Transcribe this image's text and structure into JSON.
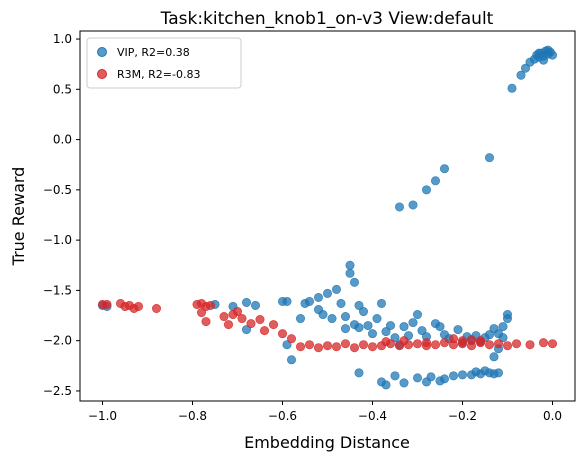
{
  "chart_data": {
    "type": "scatter",
    "title": "Task:kitchen_knob1_on-v3 View:default",
    "xlabel": "Embedding Distance",
    "ylabel": "True Reward",
    "xlim": [
      -1.05,
      0.05
    ],
    "ylim": [
      -2.6,
      1.08
    ],
    "xticks": [
      -1.0,
      -0.8,
      -0.6,
      -0.4,
      -0.2,
      0.0
    ],
    "yticks": [
      1.0,
      0.5,
      0.0,
      -0.5,
      -1.0,
      -1.5,
      -2.0,
      -2.5
    ],
    "xtick_labels": [
      "−1.0",
      "−0.8",
      "−0.6",
      "−0.4",
      "−0.2",
      "0.0"
    ],
    "ytick_labels": [
      "1.0",
      "0.5",
      "0.0",
      "−0.5",
      "−1.0",
      "−1.5",
      "−2.0",
      "−2.5"
    ],
    "grid": false,
    "legend_position": "top-left",
    "series": [
      {
        "name": "VIP, R2=0.38",
        "color": "#1f77b4",
        "points": [
          [
            -1.0,
            -1.65
          ],
          [
            -0.99,
            -1.66
          ],
          [
            -0.75,
            -1.64
          ],
          [
            -0.71,
            -1.66
          ],
          [
            -0.68,
            -1.62
          ],
          [
            -0.66,
            -1.65
          ],
          [
            -0.6,
            -1.61
          ],
          [
            -0.59,
            -1.61
          ],
          [
            -0.68,
            -1.89
          ],
          [
            -0.59,
            -2.04
          ],
          [
            -0.56,
            -1.78
          ],
          [
            -0.55,
            -1.63
          ],
          [
            -0.54,
            -1.61
          ],
          [
            -0.52,
            -1.57
          ],
          [
            -0.52,
            -1.69
          ],
          [
            -0.51,
            -1.74
          ],
          [
            -0.5,
            -1.53
          ],
          [
            -0.49,
            -1.78
          ],
          [
            -0.48,
            -1.49
          ],
          [
            -0.47,
            -1.63
          ],
          [
            -0.46,
            -1.76
          ],
          [
            -0.46,
            -1.88
          ],
          [
            -0.45,
            -1.33
          ],
          [
            -0.45,
            -1.25
          ],
          [
            -0.44,
            -1.42
          ],
          [
            -0.44,
            -1.84
          ],
          [
            -0.43,
            -1.65
          ],
          [
            -0.43,
            -1.87
          ],
          [
            -0.42,
            -1.71
          ],
          [
            -0.41,
            -1.85
          ],
          [
            -0.4,
            -1.93
          ],
          [
            -0.39,
            -1.78
          ],
          [
            -0.38,
            -1.63
          ],
          [
            -0.37,
            -1.91
          ],
          [
            -0.36,
            -1.85
          ],
          [
            -0.35,
            -1.97
          ],
          [
            -0.34,
            -2.04
          ],
          [
            -0.33,
            -1.86
          ],
          [
            -0.32,
            -1.95
          ],
          [
            -0.31,
            -1.82
          ],
          [
            -0.3,
            -1.74
          ],
          [
            -0.29,
            -1.9
          ],
          [
            -0.28,
            -1.96
          ],
          [
            -0.26,
            -1.83
          ],
          [
            -0.25,
            -1.86
          ],
          [
            -0.24,
            -1.94
          ],
          [
            -0.23,
            -1.98
          ],
          [
            -0.21,
            -1.89
          ],
          [
            -0.2,
            -2.02
          ],
          [
            -0.19,
            -1.96
          ],
          [
            -0.18,
            -2.0
          ],
          [
            -0.17,
            -1.95
          ],
          [
            -0.16,
            -2.01
          ],
          [
            -0.15,
            -1.97
          ],
          [
            -0.14,
            -1.94
          ],
          [
            -0.13,
            -1.88
          ],
          [
            -0.12,
            -1.93
          ],
          [
            -0.11,
            -1.97
          ],
          [
            -0.11,
            -1.86
          ],
          [
            -0.1,
            -1.78
          ],
          [
            -0.1,
            -1.74
          ],
          [
            -0.12,
            -2.08
          ],
          [
            -0.13,
            -2.16
          ],
          [
            -0.58,
            -2.19
          ],
          [
            -0.43,
            -2.32
          ],
          [
            -0.38,
            -2.41
          ],
          [
            -0.37,
            -2.44
          ],
          [
            -0.35,
            -2.35
          ],
          [
            -0.33,
            -2.42
          ],
          [
            -0.3,
            -2.37
          ],
          [
            -0.28,
            -2.41
          ],
          [
            -0.27,
            -2.36
          ],
          [
            -0.25,
            -2.4
          ],
          [
            -0.24,
            -2.38
          ],
          [
            -0.22,
            -2.35
          ],
          [
            -0.2,
            -2.34
          ],
          [
            -0.18,
            -2.34
          ],
          [
            -0.17,
            -2.31
          ],
          [
            -0.16,
            -2.33
          ],
          [
            -0.15,
            -2.3
          ],
          [
            -0.14,
            -2.32
          ],
          [
            -0.13,
            -2.33
          ],
          [
            -0.12,
            -2.32
          ],
          [
            -0.34,
            -0.67
          ],
          [
            -0.31,
            -0.65
          ],
          [
            -0.28,
            -0.5
          ],
          [
            -0.26,
            -0.41
          ],
          [
            -0.24,
            -0.29
          ],
          [
            -0.14,
            -0.18
          ],
          [
            -0.09,
            0.51
          ],
          [
            -0.07,
            0.64
          ],
          [
            -0.06,
            0.71
          ],
          [
            -0.05,
            0.77
          ],
          [
            -0.04,
            0.8
          ],
          [
            -0.035,
            0.84
          ],
          [
            -0.03,
            0.82
          ],
          [
            -0.025,
            0.86
          ],
          [
            -0.02,
            0.83
          ],
          [
            -0.015,
            0.88
          ],
          [
            -0.01,
            0.85
          ],
          [
            -0.005,
            0.87
          ],
          [
            0.0,
            0.84
          ],
          [
            -0.02,
            0.79
          ],
          [
            -0.03,
            0.86
          ],
          [
            -0.01,
            0.89
          ]
        ]
      },
      {
        "name": "R3M, R2=-0.83",
        "color": "#d62728",
        "points": [
          [
            -1.0,
            -1.64
          ],
          [
            -0.99,
            -1.64
          ],
          [
            -0.96,
            -1.63
          ],
          [
            -0.95,
            -1.66
          ],
          [
            -0.94,
            -1.65
          ],
          [
            -0.93,
            -1.68
          ],
          [
            -0.92,
            -1.66
          ],
          [
            -0.88,
            -1.68
          ],
          [
            -0.79,
            -1.64
          ],
          [
            -0.78,
            -1.63
          ],
          [
            -0.77,
            -1.66
          ],
          [
            -0.76,
            -1.65
          ],
          [
            -0.78,
            -1.72
          ],
          [
            -0.77,
            -1.81
          ],
          [
            -0.73,
            -1.76
          ],
          [
            -0.72,
            -1.84
          ],
          [
            -0.71,
            -1.74
          ],
          [
            -0.7,
            -1.71
          ],
          [
            -0.69,
            -1.78
          ],
          [
            -0.67,
            -1.83
          ],
          [
            -0.65,
            -1.79
          ],
          [
            -0.64,
            -1.9
          ],
          [
            -0.62,
            -1.84
          ],
          [
            -0.6,
            -1.93
          ],
          [
            -0.58,
            -1.98
          ],
          [
            -0.56,
            -2.06
          ],
          [
            -0.54,
            -2.04
          ],
          [
            -0.52,
            -2.07
          ],
          [
            -0.5,
            -2.05
          ],
          [
            -0.48,
            -2.06
          ],
          [
            -0.46,
            -2.03
          ],
          [
            -0.44,
            -2.07
          ],
          [
            -0.42,
            -2.04
          ],
          [
            -0.4,
            -2.06
          ],
          [
            -0.38,
            -2.05
          ],
          [
            -0.36,
            -2.03
          ],
          [
            -0.34,
            -2.05
          ],
          [
            -0.32,
            -2.04
          ],
          [
            -0.3,
            -2.03
          ],
          [
            -0.28,
            -2.05
          ],
          [
            -0.26,
            -2.04
          ],
          [
            -0.24,
            -2.02
          ],
          [
            -0.22,
            -2.04
          ],
          [
            -0.2,
            -2.03
          ],
          [
            -0.18,
            -2.05
          ],
          [
            -0.16,
            -2.02
          ],
          [
            -0.14,
            -2.04
          ],
          [
            -0.12,
            -2.03
          ],
          [
            -0.1,
            -2.05
          ],
          [
            -0.08,
            -2.03
          ],
          [
            -0.05,
            -2.04
          ],
          [
            -0.02,
            -2.02
          ],
          [
            0.0,
            -2.03
          ],
          [
            -0.22,
            -1.98
          ],
          [
            -0.2,
            -2.0
          ],
          [
            -0.18,
            -1.99
          ],
          [
            -0.16,
            -2.0
          ],
          [
            -0.37,
            -2.01
          ],
          [
            -0.33,
            -2.0
          ],
          [
            -0.28,
            -2.02
          ]
        ]
      }
    ]
  }
}
